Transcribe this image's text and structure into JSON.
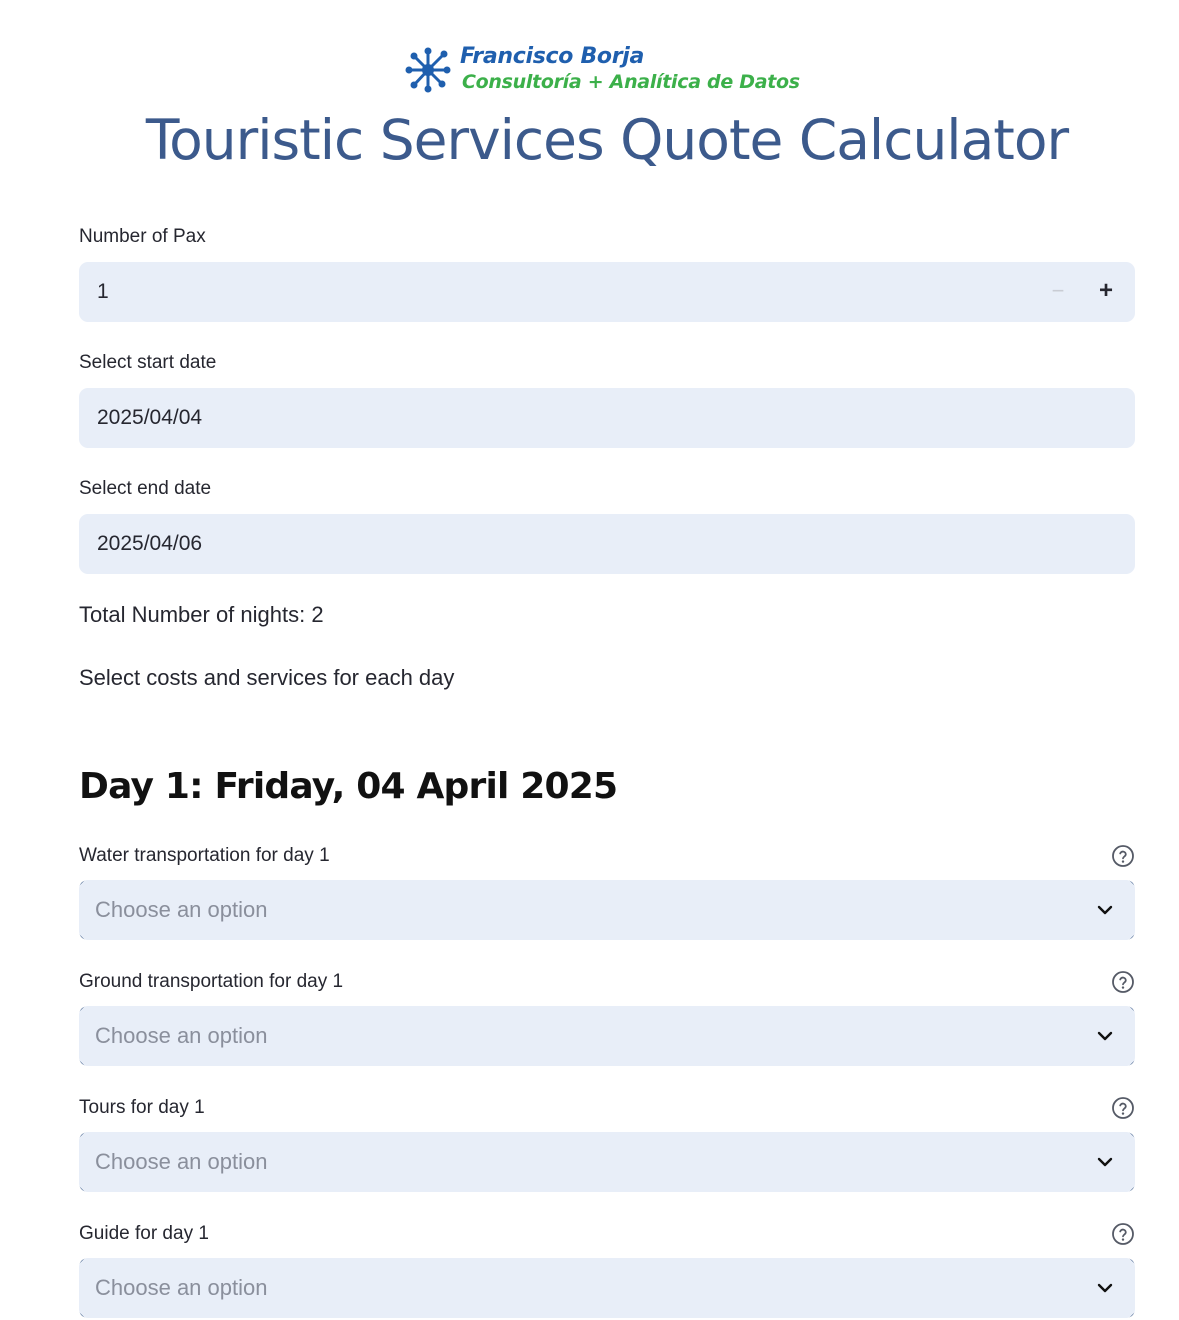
{
  "brand": {
    "name": "Francisco Borja",
    "tagline": "Consultoría + Analítica de Datos",
    "primary_color": "#1f5fae",
    "accent_color": "#3cb04a"
  },
  "title": "Touristic Services Quote Calculator",
  "pax": {
    "label": "Number of Pax",
    "value": "1",
    "minus": "−",
    "plus": "+"
  },
  "start_date": {
    "label": "Select start date",
    "value": "2025/04/04"
  },
  "end_date": {
    "label": "Select end date",
    "value": "2025/04/06"
  },
  "nights_text": "Total Number of nights: 2",
  "instructions": "Select costs and services for each day",
  "day1": {
    "heading": "Day 1: Friday, 04 April 2025",
    "selects": [
      {
        "label": "Water transportation for day 1",
        "placeholder": "Choose an option"
      },
      {
        "label": "Ground transportation for day 1",
        "placeholder": "Choose an option"
      },
      {
        "label": "Tours for day 1",
        "placeholder": "Choose an option"
      },
      {
        "label": "Guide for day 1",
        "placeholder": "Choose an option"
      }
    ]
  },
  "icons": {
    "logo": "network-star-icon",
    "help": "question-circle-icon",
    "dropdown": "chevron-down-icon"
  }
}
